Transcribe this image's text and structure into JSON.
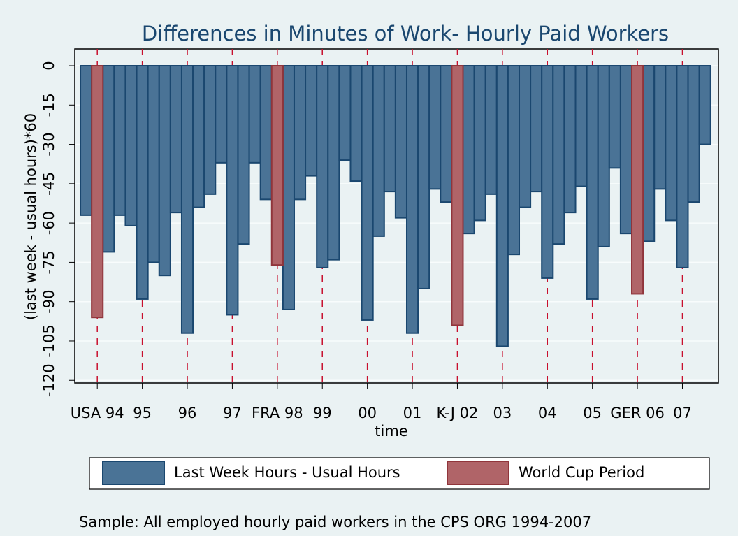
{
  "chart_data": {
    "type": "bar",
    "title": "Differences in Minutes of Work- Hourly Paid Workers",
    "x_label": "time",
    "y_label": "(last week - usual hours)*60",
    "note": "Sample: All employed hourly paid workers in the CPS ORG 1994-2007",
    "series": [
      {
        "name": "Last Week Hours - Usual Hours",
        "color": "#4a7396",
        "x": [
          136,
          138,
          139,
          140,
          141,
          142,
          143,
          144,
          145,
          146,
          147,
          148,
          149,
          150,
          151,
          152,
          154,
          155,
          156,
          157,
          158,
          159,
          160,
          161,
          162,
          163,
          164,
          165,
          166,
          167,
          168,
          170,
          171,
          172,
          173,
          174,
          175,
          176,
          177,
          178,
          179,
          180,
          181,
          182,
          183,
          184,
          186,
          187,
          188,
          189,
          190,
          191
        ],
        "values": [
          -57,
          -71,
          -57,
          -61,
          -89,
          -75,
          -80,
          -56,
          -102,
          -54,
          -49,
          -37,
          -95,
          -68,
          -37,
          -51,
          -93,
          -51,
          -42,
          -77,
          -74,
          -36,
          -44,
          -97,
          -65,
          -48,
          -58,
          -102,
          -85,
          -47,
          -52,
          -64,
          -59,
          -49,
          -107,
          -72,
          -54,
          -48,
          -81,
          -68,
          -56,
          -46,
          -89,
          -69,
          -39,
          -64,
          -67,
          -47,
          -59,
          -77,
          -52,
          -30
        ]
      },
      {
        "name": "World Cup Period",
        "color": "#b06468",
        "x": [
          137,
          153,
          169,
          185
        ],
        "values": [
          -96,
          -76,
          -99,
          -87
        ]
      }
    ],
    "xlim": [
      135,
      192.2
    ],
    "ylim": [
      -121,
      6.4
    ],
    "yticks": [
      0,
      -15,
      -30,
      -45,
      -60,
      -75,
      -90,
      -105,
      -120
    ],
    "xticks": [
      {
        "value": 137,
        "label": "USA 94"
      },
      {
        "value": 141,
        "label": "95"
      },
      {
        "value": 145,
        "label": "96"
      },
      {
        "value": 149,
        "label": "97"
      },
      {
        "value": 153,
        "label": "FRA 98"
      },
      {
        "value": 157,
        "label": "99"
      },
      {
        "value": 161,
        "label": "00"
      },
      {
        "value": 165,
        "label": "01"
      },
      {
        "value": 169,
        "label": "K-J 02"
      },
      {
        "value": 173,
        "label": "03"
      },
      {
        "value": 177,
        "label": "04"
      },
      {
        "value": 181,
        "label": "05"
      },
      {
        "value": 185,
        "label": "GER 06"
      },
      {
        "value": 189,
        "label": "07"
      }
    ],
    "grid": true
  }
}
